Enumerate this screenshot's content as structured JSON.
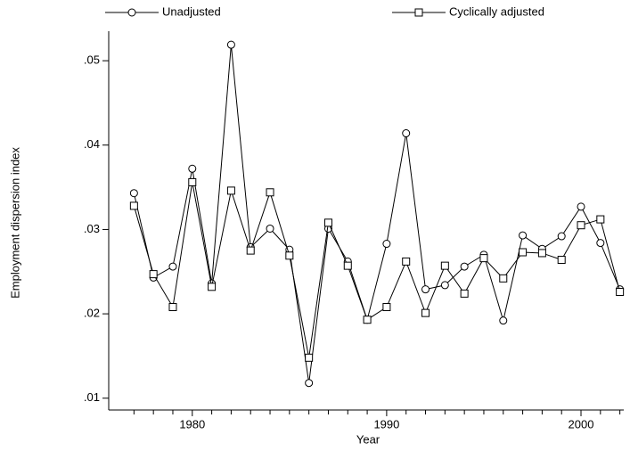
{
  "chart_data": {
    "type": "line",
    "x": [
      1977,
      1978,
      1979,
      1980,
      1981,
      1982,
      1983,
      1984,
      1985,
      1986,
      1987,
      1988,
      1989,
      1990,
      1991,
      1992,
      1993,
      1994,
      1995,
      1996,
      1997,
      1998,
      1999,
      2000,
      2001,
      2002
    ],
    "series": [
      {
        "name": "Unadjusted",
        "color": "#000000",
        "marker": "circle",
        "values": [
          0.0343,
          0.0243,
          0.0256,
          0.0372,
          0.0236,
          0.0519,
          0.0279,
          0.0301,
          0.0276,
          0.0118,
          0.0301,
          0.0262,
          0.0193,
          0.0283,
          0.0414,
          0.0229,
          0.0234,
          0.0256,
          0.027,
          0.0192,
          0.0293,
          0.0277,
          0.0292,
          0.0327,
          0.0284,
          0.0229
        ]
      },
      {
        "name": "Cyclically adjusted",
        "color": "#000000",
        "marker": "square",
        "values": [
          0.0328,
          0.0247,
          0.0208,
          0.0356,
          0.0232,
          0.0346,
          0.0275,
          0.0344,
          0.0269,
          0.0148,
          0.0308,
          0.0257,
          0.0193,
          0.0208,
          0.0262,
          0.0201,
          0.0257,
          0.0224,
          0.0266,
          0.0242,
          0.0273,
          0.0272,
          0.0264,
          0.0305,
          0.0312,
          0.0226
        ]
      }
    ],
    "x_label": "Year",
    "y_label": "Employment dispersion index",
    "xlim": [
      1975.7,
      2002.2
    ],
    "xticks": [
      1980,
      1990,
      2000
    ],
    "xminorticks": [
      1977,
      1978,
      1979,
      1981,
      1982,
      1983,
      1984,
      1985,
      1986,
      1987,
      1988,
      1989,
      1991,
      1992,
      1993,
      1994,
      1995,
      1996,
      1997,
      1998,
      1999,
      2001,
      2002
    ],
    "ylim": [
      0.0086,
      0.0535
    ],
    "yticks": [
      {
        "value": 0.01,
        "label": ".01"
      },
      {
        "value": 0.02,
        "label": ".02"
      },
      {
        "value": 0.03,
        "label": ".03"
      },
      {
        "value": 0.04,
        "label": ".04"
      },
      {
        "value": 0.05,
        "label": ".05"
      }
    ],
    "grid": false
  }
}
